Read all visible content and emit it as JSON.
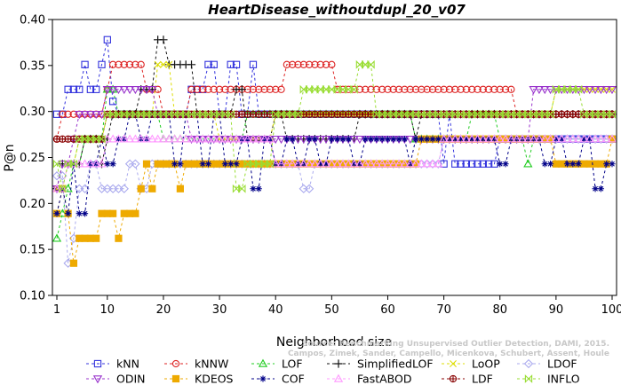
{
  "chart_data": {
    "type": "line",
    "title": "HeartDisease_withoutdupl_20_v07",
    "xlabel": "Neighborhood size",
    "ylabel": "P@n",
    "xlim": [
      1,
      100
    ],
    "ylim": [
      0.1,
      0.4
    ],
    "x_ticks": [
      1,
      10,
      20,
      30,
      40,
      50,
      60,
      70,
      80,
      90,
      100
    ],
    "y_ticks": [
      0.1,
      0.15,
      0.2,
      0.25,
      0.3,
      0.35,
      0.4
    ],
    "x_tick_labels": [
      "1",
      "10",
      "20",
      "30",
      "40",
      "50",
      "60",
      "70",
      "80",
      "90",
      "100"
    ],
    "y_tick_labels": [
      "0.10",
      "0.15",
      "0.20",
      "0.25",
      "0.30",
      "0.35",
      "0.40"
    ],
    "legend_position": "bottom",
    "watermark": [
      "Source: Benchmarking Unsupervised Outlier Detection, DAMI, 2015.",
      "Campos, Zimek, Sander, Campello, Micenkova, Schubert, Assent, Houle"
    ],
    "series": [
      {
        "name": "kNN",
        "color": "#3333dd",
        "marker": "square",
        "points": [
          [
            1,
            0.297
          ],
          [
            2,
            0.297
          ],
          [
            3,
            0.324
          ],
          [
            4,
            0.324
          ],
          [
            5,
            0.324
          ],
          [
            6,
            0.351
          ],
          [
            7,
            0.324
          ],
          [
            8,
            0.324
          ],
          [
            9,
            0.351
          ],
          [
            10,
            0.378
          ],
          [
            11,
            0.311
          ],
          [
            12,
            0.297
          ],
          [
            15,
            0.297
          ],
          [
            20,
            0.297
          ],
          [
            25,
            0.324
          ],
          [
            27,
            0.324
          ],
          [
            28,
            0.351
          ],
          [
            30,
            0.297
          ],
          [
            32,
            0.351
          ],
          [
            34,
            0.297
          ],
          [
            36,
            0.351
          ],
          [
            37,
            0.297
          ],
          [
            45,
            0.297
          ],
          [
            55,
            0.297
          ],
          [
            65,
            0.297
          ],
          [
            70,
            0.243
          ],
          [
            71,
            0.297
          ],
          [
            72,
            0.243
          ],
          [
            78,
            0.243
          ],
          [
            80,
            0.27
          ],
          [
            85,
            0.27
          ],
          [
            90,
            0.27
          ],
          [
            100,
            0.27
          ]
        ]
      },
      {
        "name": "kNNW",
        "color": "#dd2222",
        "marker": "circle",
        "points": [
          [
            1,
            0.27
          ],
          [
            2,
            0.297
          ],
          [
            5,
            0.297
          ],
          [
            8,
            0.297
          ],
          [
            10,
            0.324
          ],
          [
            11,
            0.351
          ],
          [
            15,
            0.351
          ],
          [
            17,
            0.324
          ],
          [
            20,
            0.297
          ],
          [
            25,
            0.324
          ],
          [
            35,
            0.324
          ],
          [
            42,
            0.351
          ],
          [
            50,
            0.351
          ],
          [
            51,
            0.324
          ],
          [
            60,
            0.324
          ],
          [
            70,
            0.324
          ],
          [
            82,
            0.324
          ],
          [
            83,
            0.297
          ],
          [
            90,
            0.297
          ],
          [
            95,
            0.297
          ],
          [
            100,
            0.297
          ]
        ]
      },
      {
        "name": "LOF",
        "color": "#22cc22",
        "marker": "triangle-up",
        "points": [
          [
            1,
            0.162
          ],
          [
            2,
            0.189
          ],
          [
            3,
            0.216
          ],
          [
            4,
            0.243
          ],
          [
            6,
            0.27
          ],
          [
            8,
            0.27
          ],
          [
            10,
            0.324
          ],
          [
            12,
            0.297
          ],
          [
            20,
            0.27
          ],
          [
            25,
            0.27
          ],
          [
            30,
            0.27
          ],
          [
            35,
            0.297
          ],
          [
            45,
            0.297
          ],
          [
            55,
            0.297
          ],
          [
            60,
            0.297
          ],
          [
            65,
            0.27
          ],
          [
            75,
            0.297
          ],
          [
            80,
            0.27
          ],
          [
            85,
            0.243
          ],
          [
            86,
            0.27
          ],
          [
            90,
            0.27
          ],
          [
            100,
            0.27
          ]
        ]
      },
      {
        "name": "SimplifiedLOF",
        "color": "#111111",
        "marker": "plus",
        "points": [
          [
            1,
            0.216
          ],
          [
            2,
            0.243
          ],
          [
            3,
            0.243
          ],
          [
            4,
            0.243
          ],
          [
            5,
            0.243
          ],
          [
            6,
            0.27
          ],
          [
            8,
            0.27
          ],
          [
            9,
            0.243
          ],
          [
            10,
            0.27
          ],
          [
            11,
            0.297
          ],
          [
            13,
            0.297
          ],
          [
            16,
            0.324
          ],
          [
            18,
            0.324
          ],
          [
            19,
            0.378
          ],
          [
            20,
            0.378
          ],
          [
            21,
            0.351
          ],
          [
            25,
            0.351
          ],
          [
            26,
            0.297
          ],
          [
            30,
            0.297
          ],
          [
            33,
            0.324
          ],
          [
            35,
            0.27
          ],
          [
            40,
            0.297
          ],
          [
            42,
            0.27
          ],
          [
            50,
            0.27
          ],
          [
            55,
            0.297
          ],
          [
            60,
            0.297
          ],
          [
            65,
            0.27
          ],
          [
            66,
            0.297
          ],
          [
            70,
            0.297
          ],
          [
            80,
            0.297
          ],
          [
            90,
            0.297
          ],
          [
            100,
            0.297
          ]
        ]
      },
      {
        "name": "LoOP",
        "color": "#dddd00",
        "marker": "x",
        "points": [
          [
            1,
            0.216
          ],
          [
            3,
            0.243
          ],
          [
            5,
            0.27
          ],
          [
            10,
            0.297
          ],
          [
            15,
            0.297
          ],
          [
            19,
            0.351
          ],
          [
            20,
            0.351
          ],
          [
            22,
            0.297
          ],
          [
            25,
            0.297
          ],
          [
            30,
            0.27
          ],
          [
            40,
            0.297
          ],
          [
            50,
            0.297
          ],
          [
            60,
            0.297
          ],
          [
            70,
            0.297
          ],
          [
            80,
            0.297
          ],
          [
            90,
            0.324
          ],
          [
            95,
            0.324
          ],
          [
            100,
            0.324
          ]
        ]
      },
      {
        "name": "LDOF",
        "color": "#aaaaee",
        "marker": "diamond",
        "points": [
          [
            1,
            0.23
          ],
          [
            3,
            0.135
          ],
          [
            4,
            0.162
          ],
          [
            5,
            0.216
          ],
          [
            7,
            0.243
          ],
          [
            9,
            0.216
          ],
          [
            12,
            0.216
          ],
          [
            14,
            0.243
          ],
          [
            16,
            0.216
          ],
          [
            18,
            0.243
          ],
          [
            20,
            0.243
          ],
          [
            25,
            0.243
          ],
          [
            35,
            0.243
          ],
          [
            45,
            0.216
          ],
          [
            47,
            0.243
          ],
          [
            55,
            0.243
          ],
          [
            60,
            0.243
          ],
          [
            65,
            0.243
          ],
          [
            70,
            0.27
          ],
          [
            80,
            0.27
          ],
          [
            90,
            0.27
          ],
          [
            100,
            0.27
          ]
        ]
      },
      {
        "name": "ODIN",
        "color": "#9933cc",
        "marker": "triangle-down",
        "points": [
          [
            1,
            0.216
          ],
          [
            2,
            0.243
          ],
          [
            4,
            0.27
          ],
          [
            5,
            0.297
          ],
          [
            8,
            0.297
          ],
          [
            10,
            0.324
          ],
          [
            14,
            0.324
          ],
          [
            16,
            0.324
          ],
          [
            17,
            0.324
          ],
          [
            19,
            0.297
          ],
          [
            21,
            0.297
          ],
          [
            25,
            0.27
          ],
          [
            30,
            0.27
          ],
          [
            40,
            0.27
          ],
          [
            50,
            0.27
          ],
          [
            60,
            0.27
          ],
          [
            70,
            0.27
          ],
          [
            80,
            0.27
          ],
          [
            86,
            0.324
          ],
          [
            90,
            0.324
          ],
          [
            95,
            0.324
          ],
          [
            100,
            0.324
          ]
        ]
      },
      {
        "name": "KDEOS",
        "color": "#eeaa00",
        "marker": "square-filled",
        "points": [
          [
            1,
            0.189
          ],
          [
            2,
            0.216
          ],
          [
            3,
            0.189
          ],
          [
            4,
            0.135
          ],
          [
            5,
            0.162
          ],
          [
            7,
            0.162
          ],
          [
            9,
            0.189
          ],
          [
            11,
            0.189
          ],
          [
            12,
            0.162
          ],
          [
            13,
            0.189
          ],
          [
            15,
            0.189
          ],
          [
            16,
            0.216
          ],
          [
            17,
            0.243
          ],
          [
            18,
            0.216
          ],
          [
            19,
            0.243
          ],
          [
            20,
            0.243
          ],
          [
            23,
            0.216
          ],
          [
            24,
            0.243
          ],
          [
            30,
            0.243
          ],
          [
            40,
            0.243
          ],
          [
            50,
            0.243
          ],
          [
            60,
            0.243
          ],
          [
            65,
            0.243
          ],
          [
            66,
            0.27
          ],
          [
            70,
            0.27
          ],
          [
            80,
            0.27
          ],
          [
            90,
            0.243
          ],
          [
            95,
            0.243
          ],
          [
            100,
            0.27
          ]
        ]
      },
      {
        "name": "COF",
        "color": "#000088",
        "marker": "asterisk",
        "points": [
          [
            1,
            0.189
          ],
          [
            2,
            0.216
          ],
          [
            3,
            0.189
          ],
          [
            4,
            0.243
          ],
          [
            5,
            0.189
          ],
          [
            7,
            0.243
          ],
          [
            9,
            0.27
          ],
          [
            10,
            0.243
          ],
          [
            12,
            0.27
          ],
          [
            14,
            0.297
          ],
          [
            16,
            0.27
          ],
          [
            18,
            0.297
          ],
          [
            22,
            0.243
          ],
          [
            24,
            0.297
          ],
          [
            27,
            0.243
          ],
          [
            29,
            0.297
          ],
          [
            31,
            0.243
          ],
          [
            34,
            0.27
          ],
          [
            36,
            0.216
          ],
          [
            38,
            0.27
          ],
          [
            40,
            0.243
          ],
          [
            42,
            0.27
          ],
          [
            44,
            0.243
          ],
          [
            46,
            0.27
          ],
          [
            48,
            0.243
          ],
          [
            50,
            0.27
          ],
          [
            54,
            0.243
          ],
          [
            56,
            0.27
          ],
          [
            60,
            0.27
          ],
          [
            64,
            0.243
          ],
          [
            65,
            0.27
          ],
          [
            75,
            0.27
          ],
          [
            80,
            0.243
          ],
          [
            82,
            0.27
          ],
          [
            85,
            0.27
          ],
          [
            88,
            0.243
          ],
          [
            90,
            0.27
          ],
          [
            92,
            0.243
          ],
          [
            95,
            0.27
          ],
          [
            97,
            0.216
          ],
          [
            99,
            0.243
          ],
          [
            100,
            0.243
          ]
        ]
      },
      {
        "name": "FastABOD",
        "color": "#ff99ff",
        "marker": "triangle-up",
        "points": [
          [
            1,
            0.216
          ],
          [
            3,
            0.243
          ],
          [
            5,
            0.243
          ],
          [
            8,
            0.243
          ],
          [
            10,
            0.27
          ],
          [
            15,
            0.27
          ],
          [
            20,
            0.27
          ],
          [
            25,
            0.27
          ],
          [
            30,
            0.27
          ],
          [
            40,
            0.243
          ],
          [
            50,
            0.243
          ],
          [
            60,
            0.243
          ],
          [
            70,
            0.27
          ],
          [
            80,
            0.27
          ],
          [
            90,
            0.27
          ],
          [
            100,
            0.27
          ]
        ]
      },
      {
        "name": "LDF",
        "color": "#880000",
        "marker": "circle-plus",
        "points": [
          [
            1,
            0.27
          ],
          [
            5,
            0.27
          ],
          [
            10,
            0.297
          ],
          [
            20,
            0.297
          ],
          [
            30,
            0.297
          ],
          [
            40,
            0.297
          ],
          [
            50,
            0.297
          ],
          [
            60,
            0.297
          ],
          [
            70,
            0.297
          ],
          [
            80,
            0.297
          ],
          [
            90,
            0.297
          ],
          [
            100,
            0.297
          ]
        ]
      },
      {
        "name": "INFLO",
        "color": "#99dd33",
        "marker": "bowtie",
        "points": [
          [
            1,
            0.243
          ],
          [
            2,
            0.216
          ],
          [
            3,
            0.243
          ],
          [
            5,
            0.27
          ],
          [
            10,
            0.297
          ],
          [
            12,
            0.297
          ],
          [
            14,
            0.297
          ],
          [
            16,
            0.297
          ],
          [
            20,
            0.297
          ],
          [
            25,
            0.297
          ],
          [
            30,
            0.297
          ],
          [
            33,
            0.216
          ],
          [
            35,
            0.243
          ],
          [
            40,
            0.297
          ],
          [
            45,
            0.324
          ],
          [
            50,
            0.324
          ],
          [
            55,
            0.351
          ],
          [
            56,
            0.351
          ],
          [
            58,
            0.297
          ],
          [
            60,
            0.297
          ],
          [
            70,
            0.297
          ],
          [
            80,
            0.297
          ],
          [
            90,
            0.324
          ],
          [
            93,
            0.324
          ],
          [
            95,
            0.297
          ],
          [
            100,
            0.297
          ]
        ]
      }
    ]
  }
}
